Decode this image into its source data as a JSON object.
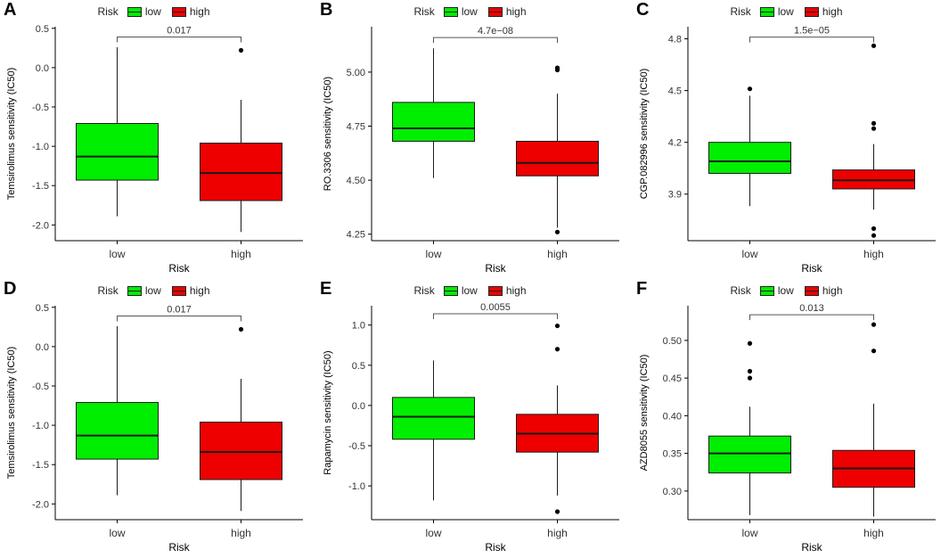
{
  "figure": {
    "legend": {
      "title": "Risk",
      "entries": [
        "low",
        "high"
      ]
    },
    "colors": {
      "low": "#00ee00",
      "high": "#ee0000",
      "stroke": "#1a1a1a",
      "axis": "#000000",
      "text": "#333333"
    }
  },
  "chart_data": [
    {
      "panel": "A",
      "type": "box",
      "ylabel": "Temsirolimus sensitivity (IC50)",
      "xlabel": "Risk",
      "categories": [
        "low",
        "high"
      ],
      "ylim": [
        -2.2,
        0.52
      ],
      "yticks": [
        -2.0,
        -1.5,
        -1.0,
        -0.5,
        0.0,
        0.5
      ],
      "ytick_labels": [
        "-2.0",
        "-1.5",
        "-1.0",
        "-0.5",
        "0.0",
        "0.5"
      ],
      "pvalue": "0.017",
      "bracket_y": 0.39,
      "boxes": [
        {
          "name": "low",
          "whisker_low": -1.89,
          "q1": -1.43,
          "median": -1.13,
          "q3": -0.71,
          "whisker_high": 0.26,
          "outliers": []
        },
        {
          "name": "high",
          "whisker_low": -2.09,
          "q1": -1.69,
          "median": -1.34,
          "q3": -0.96,
          "whisker_high": -0.41,
          "outliers": [
            0.22
          ]
        }
      ]
    },
    {
      "panel": "B",
      "type": "box",
      "ylabel": "RO.3306 sensitivity (IC50)",
      "xlabel": "Risk",
      "categories": [
        "low",
        "high"
      ],
      "ylim": [
        4.22,
        5.21
      ],
      "yticks": [
        4.25,
        4.5,
        4.75,
        5.0
      ],
      "ytick_labels": [
        "4.25",
        "4.50",
        "4.75",
        "5.00"
      ],
      "pvalue": "4.7e−08",
      "bracket_y": 5.16,
      "boxes": [
        {
          "name": "low",
          "whisker_low": 4.51,
          "q1": 4.68,
          "median": 4.74,
          "q3": 4.86,
          "whisker_high": 5.11,
          "outliers": []
        },
        {
          "name": "high",
          "whisker_low": 4.28,
          "q1": 4.52,
          "median": 4.58,
          "q3": 4.68,
          "whisker_high": 4.9,
          "outliers": [
            5.02,
            5.01,
            4.26
          ]
        }
      ]
    },
    {
      "panel": "C",
      "type": "box",
      "ylabel": "CGP.082996 sensitivity (IC50)",
      "xlabel": "Risk",
      "categories": [
        "low",
        "high"
      ],
      "ylim": [
        3.63,
        4.87
      ],
      "yticks": [
        3.9,
        4.2,
        4.5,
        4.8
      ],
      "ytick_labels": [
        "3.9",
        "4.2",
        "4.5",
        "4.8"
      ],
      "pvalue": "1.5e−05",
      "bracket_y": 4.81,
      "boxes": [
        {
          "name": "low",
          "whisker_low": 3.83,
          "q1": 4.02,
          "median": 4.09,
          "q3": 4.2,
          "whisker_high": 4.47,
          "outliers": [
            4.51
          ]
        },
        {
          "name": "high",
          "whisker_low": 3.81,
          "q1": 3.93,
          "median": 3.98,
          "q3": 4.04,
          "whisker_high": 4.19,
          "outliers": [
            4.76,
            4.31,
            4.28,
            3.7,
            3.66
          ]
        }
      ]
    },
    {
      "panel": "D",
      "type": "box",
      "ylabel": "Temsirolimus sensitivity (IC50)",
      "xlabel": "Risk",
      "categories": [
        "low",
        "high"
      ],
      "ylim": [
        -2.2,
        0.52
      ],
      "yticks": [
        -2.0,
        -1.5,
        -1.0,
        -0.5,
        0.0,
        0.5
      ],
      "ytick_labels": [
        "-2.0",
        "-1.5",
        "-1.0",
        "-0.5",
        "0.0",
        "0.5"
      ],
      "pvalue": "0.017",
      "bracket_y": 0.39,
      "boxes": [
        {
          "name": "low",
          "whisker_low": -1.89,
          "q1": -1.43,
          "median": -1.13,
          "q3": -0.71,
          "whisker_high": 0.26,
          "outliers": []
        },
        {
          "name": "high",
          "whisker_low": -2.09,
          "q1": -1.69,
          "median": -1.34,
          "q3": -0.96,
          "whisker_high": -0.41,
          "outliers": [
            0.22
          ]
        }
      ]
    },
    {
      "panel": "E",
      "type": "box",
      "ylabel": "Rapamycin sensitivity (IC50)",
      "xlabel": "Risk",
      "categories": [
        "low",
        "high"
      ],
      "ylim": [
        -1.42,
        1.24
      ],
      "yticks": [
        -1.0,
        -0.5,
        0.0,
        0.5,
        1.0
      ],
      "ytick_labels": [
        "-1.0",
        "-0.5",
        "0.0",
        "0.5",
        "1.0"
      ],
      "pvalue": "0.0055",
      "bracket_y": 1.14,
      "boxes": [
        {
          "name": "low",
          "whisker_low": -1.18,
          "q1": -0.42,
          "median": -0.14,
          "q3": 0.1,
          "whisker_high": 0.56,
          "outliers": []
        },
        {
          "name": "high",
          "whisker_low": -1.12,
          "q1": -0.58,
          "median": -0.35,
          "q3": -0.11,
          "whisker_high": 0.25,
          "outliers": [
            0.99,
            0.7,
            -1.32
          ]
        }
      ]
    },
    {
      "panel": "F",
      "type": "box",
      "ylabel": "AZD8055 sensitivity (IC50)",
      "xlabel": "Risk",
      "categories": [
        "low",
        "high"
      ],
      "ylim": [
        0.262,
        0.546
      ],
      "yticks": [
        0.3,
        0.35,
        0.4,
        0.45,
        0.5
      ],
      "ytick_labels": [
        "0.30",
        "0.35",
        "0.40",
        "0.45",
        "0.50"
      ],
      "pvalue": "0.013",
      "bracket_y": 0.534,
      "boxes": [
        {
          "name": "low",
          "whisker_low": 0.268,
          "q1": 0.324,
          "median": 0.35,
          "q3": 0.373,
          "whisker_high": 0.412,
          "outliers": [
            0.496,
            0.459,
            0.45
          ]
        },
        {
          "name": "high",
          "whisker_low": 0.266,
          "q1": 0.305,
          "median": 0.33,
          "q3": 0.354,
          "whisker_high": 0.416,
          "outliers": [
            0.521,
            0.486
          ]
        }
      ]
    }
  ]
}
